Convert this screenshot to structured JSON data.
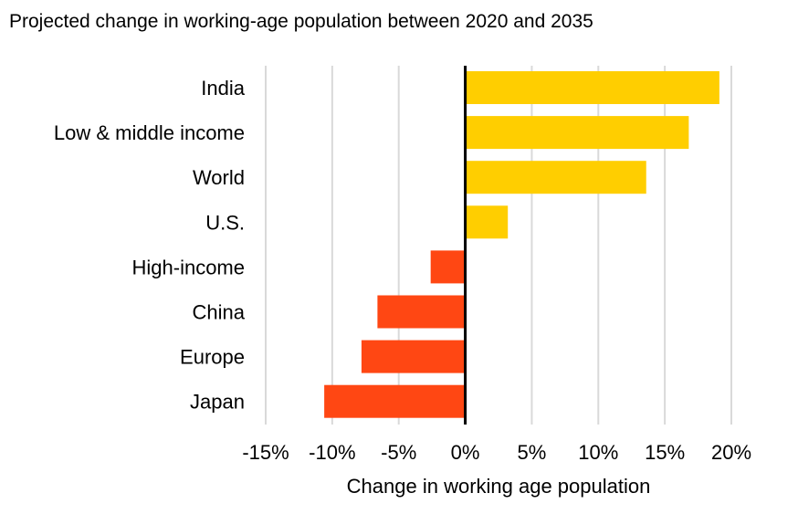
{
  "chart_data": {
    "type": "bar",
    "orientation": "horizontal",
    "title": "Projected change in working-age population between 2020 and 2035",
    "xlabel": "Change in working age population",
    "ylabel": "",
    "categories": [
      "India",
      "Low & middle income",
      "World",
      "U.S.",
      "High-income",
      "China",
      "Europe",
      "Japan"
    ],
    "values": [
      19.1,
      16.8,
      13.6,
      3.2,
      -2.6,
      -6.6,
      -7.8,
      -10.6
    ],
    "unit": "%",
    "xlim": [
      -15,
      20
    ],
    "xticks": [
      -15,
      -10,
      -5,
      0,
      5,
      10,
      15,
      20
    ],
    "xtick_labels": [
      "-15%",
      "-10%",
      "-5%",
      "0%",
      "5%",
      "10%",
      "15%",
      "20%"
    ],
    "grid": "vertical",
    "colors": {
      "positive": "#FFCE00",
      "negative": "#FF4713",
      "gridline": "#D9D9D9",
      "zero_line": "#000000"
    }
  }
}
